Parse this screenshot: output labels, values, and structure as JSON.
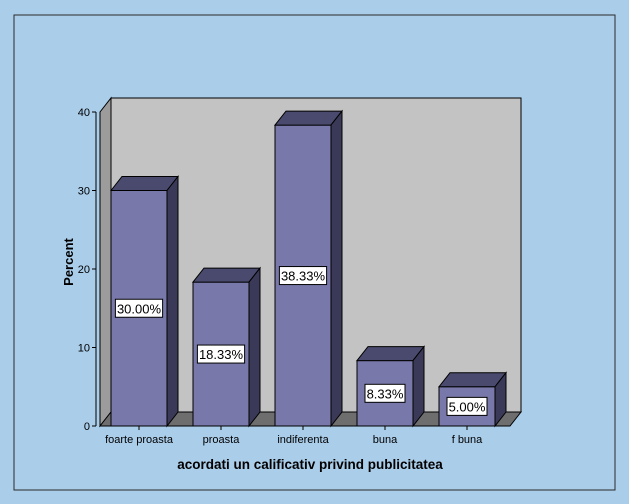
{
  "chart_data": {
    "type": "bar",
    "categories": [
      "foarte proasta",
      "proasta",
      "indiferenta",
      "buna",
      "f buna"
    ],
    "values": [
      30.0,
      18.33,
      38.33,
      8.33,
      5.0
    ],
    "value_labels": [
      "30.00%",
      "18.33%",
      "38.33%",
      "8.33%",
      "5.00%"
    ],
    "xlabel": "acordati un calificativ privind publicitatea",
    "ylabel": "Percent",
    "ylim": [
      0,
      40
    ],
    "yticks": [
      "0",
      "10",
      "20",
      "30",
      "40"
    ],
    "grid": false,
    "style": "3d-bars"
  },
  "colors": {
    "background": "#aacdea",
    "plot_back_wall": "#c3c3c3",
    "plot_floor": "#6e6e6e",
    "bar_face": "#7878aa",
    "bar_top": "#4a4a6e",
    "bar_side": "#3a3a58",
    "outline": "#000000"
  }
}
